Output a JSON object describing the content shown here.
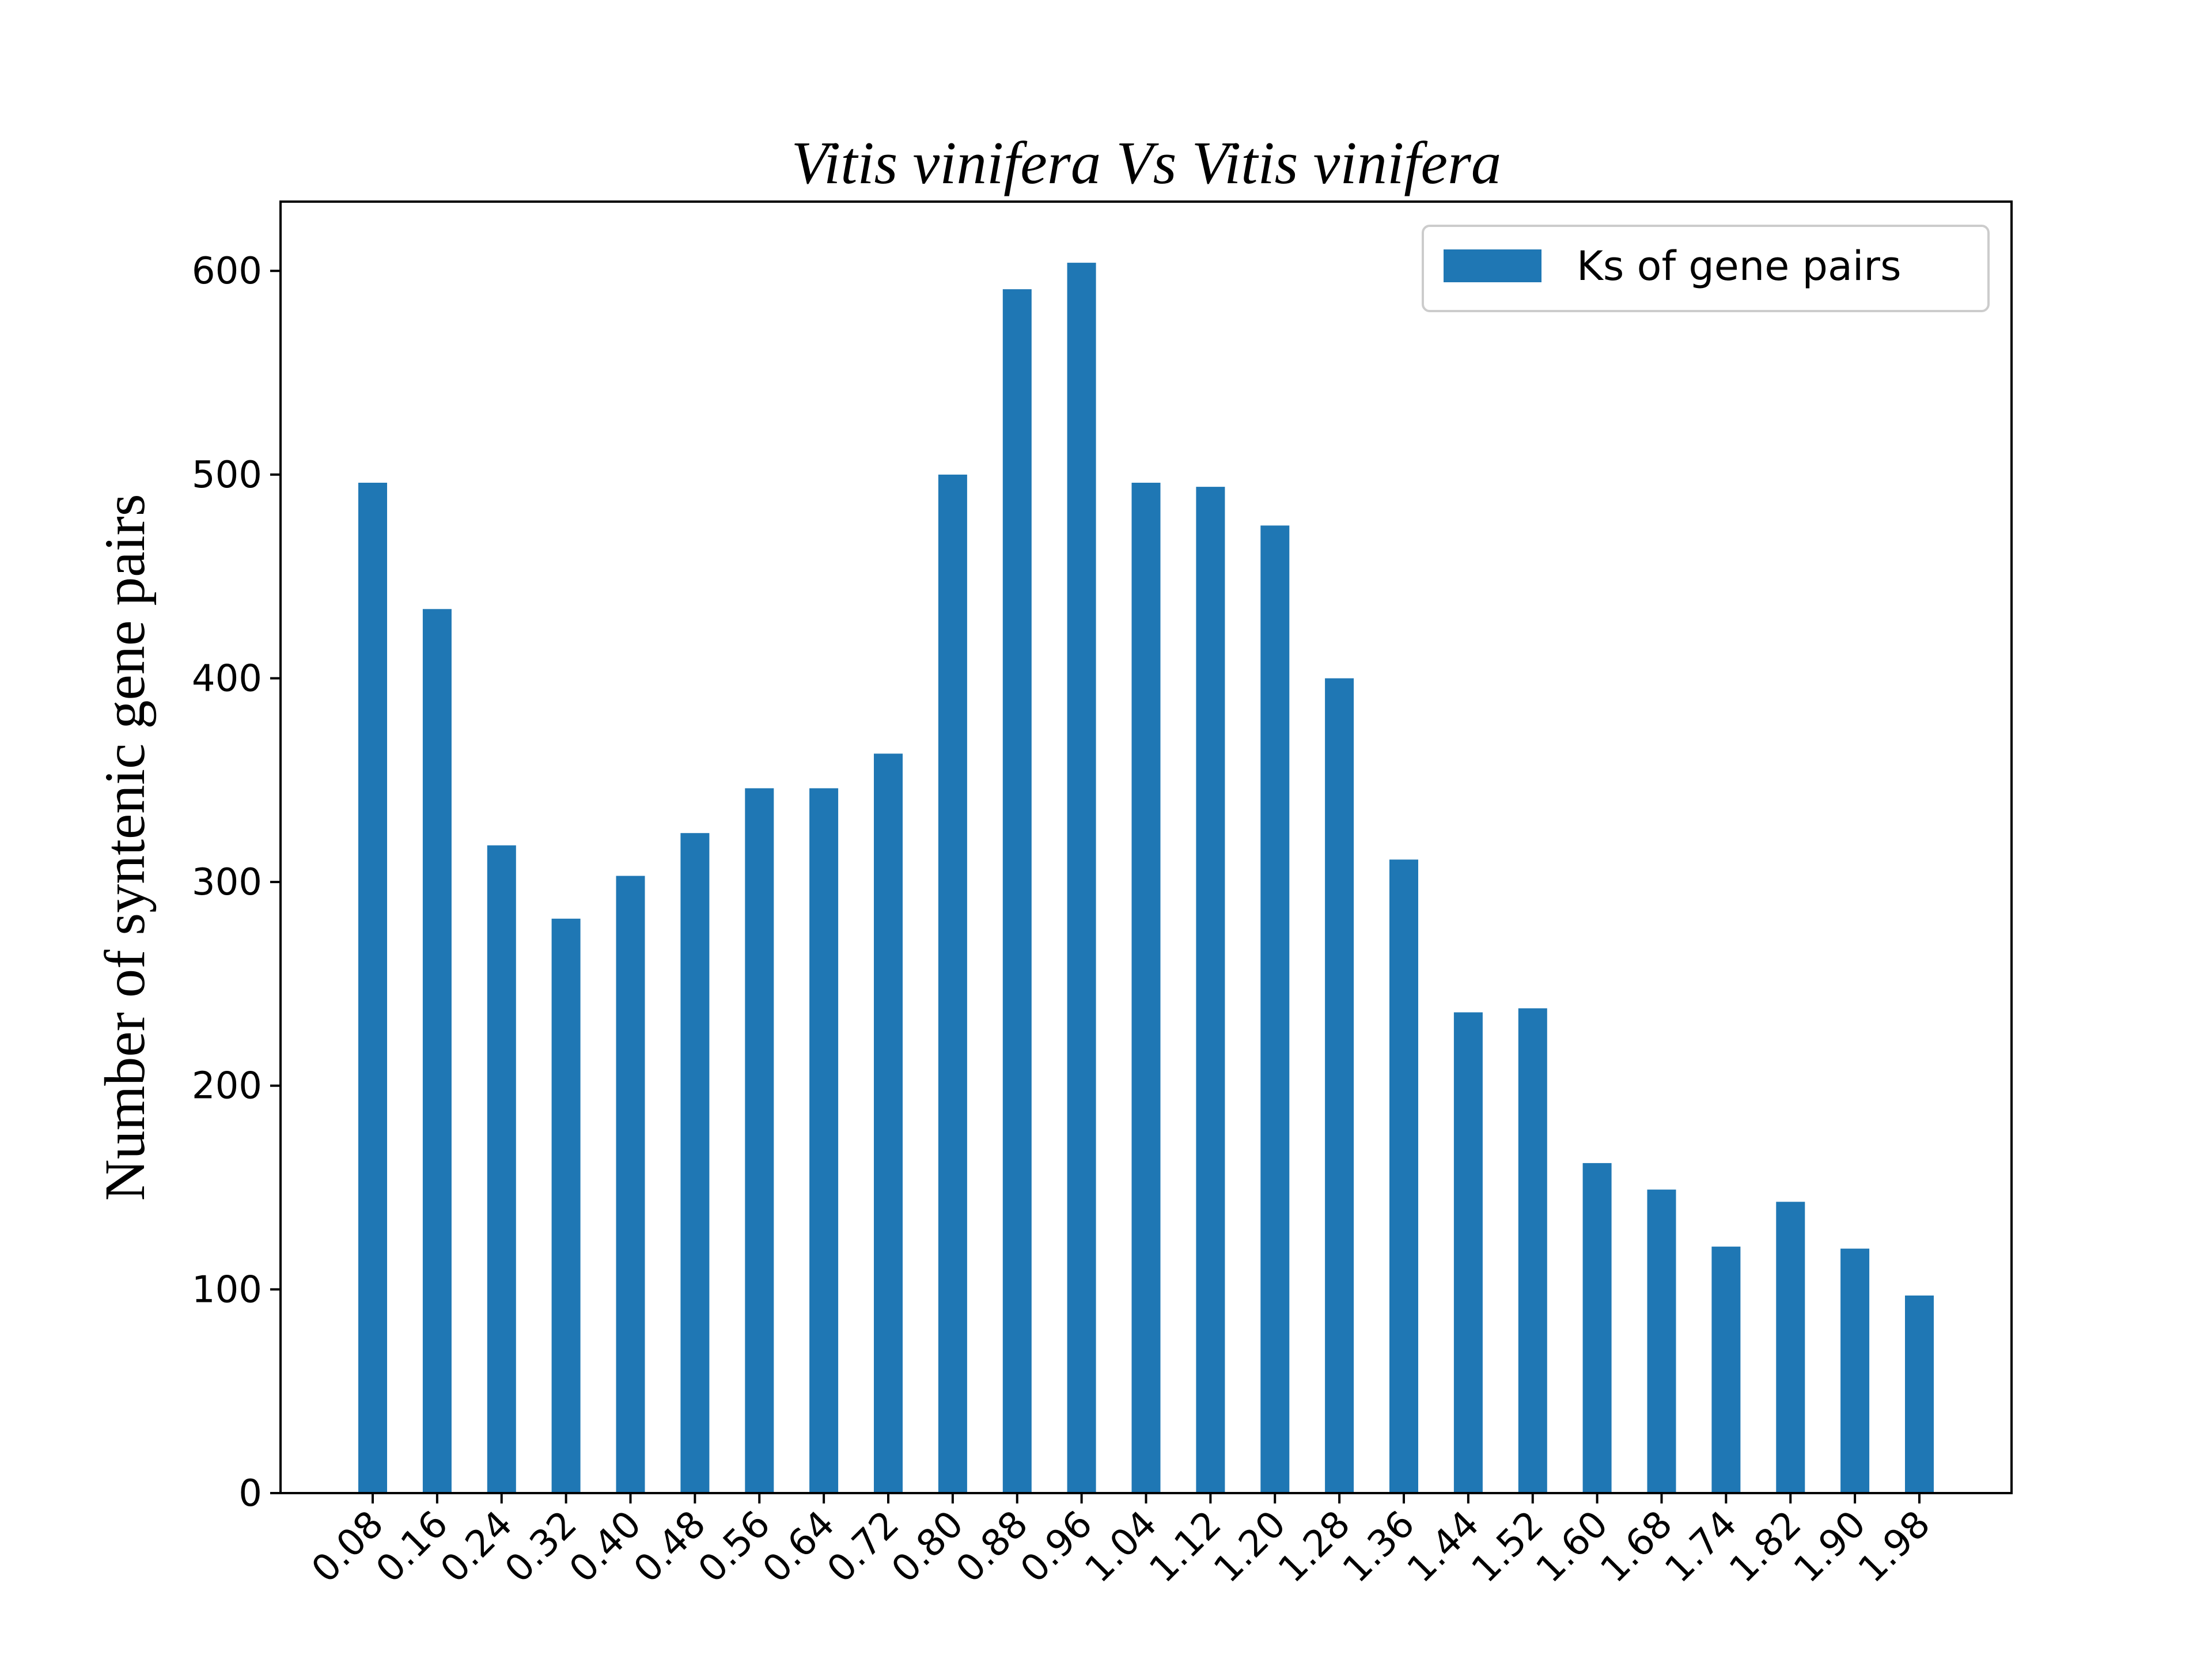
{
  "chart_data": {
    "type": "bar",
    "title": "Vitis vinifera Vs  Vitis vinifera",
    "xlabel": "",
    "ylabel": "Number of syntenic gene pairs",
    "categories": [
      "0.08",
      "0.16",
      "0.24",
      "0.32",
      "0.40",
      "0.48",
      "0.56",
      "0.64",
      "0.72",
      "0.80",
      "0.88",
      "0.96",
      "1.04",
      "1.12",
      "1.20",
      "1.28",
      "1.36",
      "1.44",
      "1.52",
      "1.60",
      "1.68",
      "1.74",
      "1.82",
      "1.90",
      "1.98"
    ],
    "series": [
      {
        "name": "Ks of gene pairs",
        "color": "#1f77b4",
        "values": [
          496,
          434,
          318,
          282,
          303,
          324,
          346,
          346,
          363,
          500,
          591,
          604,
          496,
          494,
          475,
          400,
          311,
          236,
          238,
          162,
          149,
          121,
          143,
          120,
          97
        ]
      }
    ],
    "ylim": [
      0,
      634
    ],
    "yticks": [
      0,
      100,
      200,
      300,
      400,
      500,
      600
    ],
    "grid": false,
    "legend": "top-right"
  }
}
